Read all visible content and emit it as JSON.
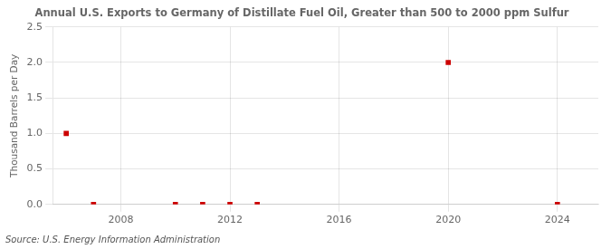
{
  "chart_data": {
    "type": "scatter",
    "title": "Annual U.S. Exports to Germany of Distillate Fuel Oil, Greater than 500 to 2000 ppm Sulfur",
    "ylabel": "Thousand Barrels per Day",
    "source": "Source: U.S. Energy Information Administration",
    "x": [
      2006,
      2007,
      2010,
      2011,
      2012,
      2013,
      2020,
      2024
    ],
    "values": [
      1.0,
      0.0,
      0.0,
      0.0,
      0.0,
      0.0,
      2.0,
      0.0
    ],
    "color": "#cc0000",
    "marker": "square",
    "xlim": [
      2005.5,
      2025.5
    ],
    "xticks": [
      2008,
      2012,
      2016,
      2020,
      2024
    ],
    "ylim": [
      0.0,
      2.5
    ],
    "yticks": [
      {
        "value": 0,
        "label": "0.0"
      },
      0.5,
      {
        "value": 1,
        "label": "1.0"
      },
      1.5,
      {
        "value": 2,
        "label": "2.0"
      },
      2.5
    ],
    "grid": true
  }
}
